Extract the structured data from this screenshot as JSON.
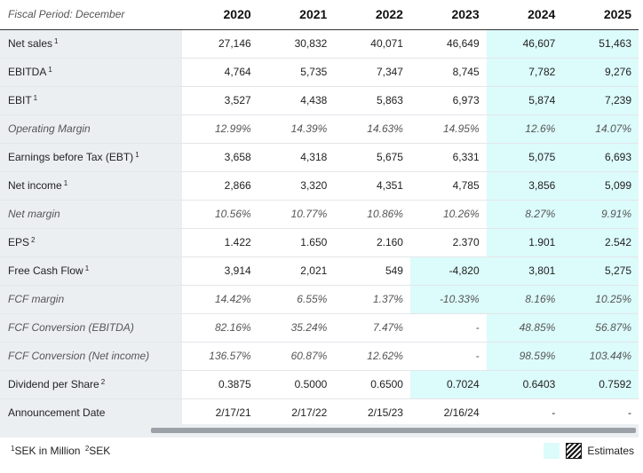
{
  "header": {
    "period_label": "Fiscal Period: December",
    "years": [
      "2020",
      "2021",
      "2022",
      "2023",
      "2024",
      "2025"
    ]
  },
  "rows": [
    {
      "label": "Net sales",
      "note": "1",
      "italic": false,
      "values": [
        "27,146",
        "30,832",
        "40,071",
        "46,649",
        "46,607",
        "51,463"
      ],
      "est_from": 4
    },
    {
      "label": "EBITDA",
      "note": "1",
      "italic": false,
      "values": [
        "4,764",
        "5,735",
        "7,347",
        "8,745",
        "7,782",
        "9,276"
      ],
      "est_from": 4
    },
    {
      "label": "EBIT",
      "note": "1",
      "italic": false,
      "values": [
        "3,527",
        "4,438",
        "5,863",
        "6,973",
        "5,874",
        "7,239"
      ],
      "est_from": 4
    },
    {
      "label": "Operating Margin",
      "note": "",
      "italic": true,
      "values": [
        "12.99%",
        "14.39%",
        "14.63%",
        "14.95%",
        "12.6%",
        "14.07%"
      ],
      "est_from": 4
    },
    {
      "label": "Earnings before Tax (EBT)",
      "note": "1",
      "italic": false,
      "values": [
        "3,658",
        "4,318",
        "5,675",
        "6,331",
        "5,075",
        "6,693"
      ],
      "est_from": 4
    },
    {
      "label": "Net income",
      "note": "1",
      "italic": false,
      "values": [
        "2,866",
        "3,320",
        "4,351",
        "4,785",
        "3,856",
        "5,099"
      ],
      "est_from": 4
    },
    {
      "label": "Net margin",
      "note": "",
      "italic": true,
      "values": [
        "10.56%",
        "10.77%",
        "10.86%",
        "10.26%",
        "8.27%",
        "9.91%"
      ],
      "est_from": 4
    },
    {
      "label": "EPS",
      "note": "2",
      "italic": false,
      "values": [
        "1.422",
        "1.650",
        "2.160",
        "2.370",
        "1.901",
        "2.542"
      ],
      "est_from": 4
    },
    {
      "label": "Free Cash Flow",
      "note": "1",
      "italic": false,
      "values": [
        "3,914",
        "2,021",
        "549",
        "-4,820",
        "3,801",
        "5,275"
      ],
      "est_from": 3
    },
    {
      "label": "FCF margin",
      "note": "",
      "italic": true,
      "values": [
        "14.42%",
        "6.55%",
        "1.37%",
        "-10.33%",
        "8.16%",
        "10.25%"
      ],
      "est_from": 3
    },
    {
      "label": "FCF Conversion (EBITDA)",
      "note": "",
      "italic": true,
      "values": [
        "82.16%",
        "35.24%",
        "7.47%",
        "-",
        "48.85%",
        "56.87%"
      ],
      "est_from": 4
    },
    {
      "label": "FCF Conversion (Net income)",
      "note": "",
      "italic": true,
      "values": [
        "136.57%",
        "60.87%",
        "12.62%",
        "-",
        "98.59%",
        "103.44%"
      ],
      "est_from": 4
    },
    {
      "label": "Dividend per Share",
      "note": "2",
      "italic": false,
      "values": [
        "0.3875",
        "0.5000",
        "0.6500",
        "0.7024",
        "0.6403",
        "0.7592"
      ],
      "est_from": 3
    },
    {
      "label": "Announcement Date",
      "note": "",
      "italic": false,
      "values": [
        "2/17/21",
        "2/17/22",
        "2/15/23",
        "2/16/24",
        "-",
        "-"
      ],
      "est_from": 6
    }
  ],
  "footer": {
    "note1_sup": "1",
    "note1_text": "SEK in Million",
    "note2_sup": "2",
    "note2_text": "SEK",
    "legend_label": "Estimates"
  },
  "colors": {
    "estimate_bg": "#dcfbfb",
    "label_bg": "#eceff2"
  }
}
